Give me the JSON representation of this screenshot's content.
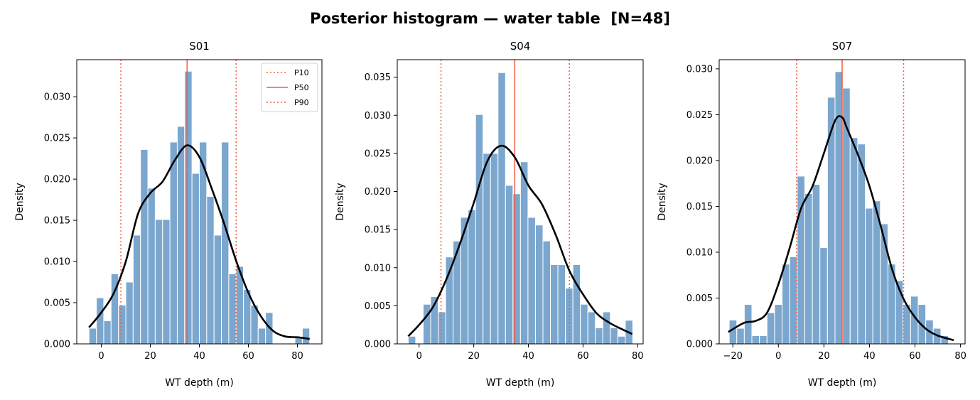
{
  "figure_title": "Posterior histogram — water table  [N=48]",
  "colors": {
    "bar": "#7ba7cf",
    "bar_edge": "#ffffff",
    "kde": "#000000",
    "percentile": "#f25c43"
  },
  "chart_data": [
    {
      "type": "bar",
      "title": "S01",
      "xlabel": "WT depth (m)",
      "ylabel": "Density",
      "xlim": [
        -10,
        90
      ],
      "ylim": [
        0,
        0.0345
      ],
      "xticks": [
        0,
        20,
        40,
        60,
        80
      ],
      "yticks": [
        0.0,
        0.005,
        0.01,
        0.015,
        0.02,
        0.025,
        0.03
      ],
      "ytick_labels": [
        "0.000",
        "0.005",
        "0.010",
        "0.015",
        "0.020",
        "0.025",
        "0.030"
      ],
      "bin_start": -5,
      "bin_width": 3,
      "values": [
        0.0019,
        0.0056,
        0.0028,
        0.0085,
        0.0047,
        0.0075,
        0.0132,
        0.0236,
        0.0189,
        0.0151,
        0.0151,
        0.0245,
        0.0264,
        0.0331,
        0.0207,
        0.0245,
        0.0179,
        0.0132,
        0.0245,
        0.0085,
        0.0094,
        0.0066,
        0.0047,
        0.0019,
        0.0038,
        0,
        0,
        0,
        0.0009,
        0.0019
      ],
      "kde": {
        "x": [
          -5,
          0,
          5,
          10,
          15,
          20,
          25,
          30,
          35,
          40,
          45,
          50,
          55,
          60,
          65,
          70,
          75,
          80,
          85
        ],
        "y": [
          0.002,
          0.0038,
          0.0061,
          0.01,
          0.0158,
          0.0183,
          0.0197,
          0.0223,
          0.0241,
          0.0227,
          0.0189,
          0.0147,
          0.0101,
          0.0062,
          0.0034,
          0.0016,
          0.0009,
          0.0008,
          0.0006
        ]
      },
      "percentiles": {
        "P10": 8,
        "P50": 35,
        "P90": 55
      },
      "legend": {
        "position": "top-right",
        "entries": [
          "P10",
          "P50",
          "P90"
        ]
      }
    },
    {
      "type": "bar",
      "title": "S04",
      "xlabel": "WT depth (m)",
      "ylabel": "Density",
      "xlim": [
        -8,
        82
      ],
      "ylim": [
        0,
        0.0373
      ],
      "xticks": [
        0,
        20,
        40,
        60,
        80
      ],
      "yticks": [
        0.0,
        0.005,
        0.01,
        0.015,
        0.02,
        0.025,
        0.03,
        0.035
      ],
      "ytick_labels": [
        "0.000",
        "0.005",
        "0.010",
        "0.015",
        "0.020",
        "0.025",
        "0.030",
        "0.035"
      ],
      "bin_start": -4,
      "bin_width": 2.74,
      "values": [
        0.001,
        0,
        0.0052,
        0.0062,
        0.0042,
        0.0114,
        0.0135,
        0.0166,
        0.0176,
        0.0301,
        0.025,
        0.025,
        0.0356,
        0.0208,
        0.0197,
        0.0239,
        0.0166,
        0.0156,
        0.0135,
        0.0104,
        0.0104,
        0.0073,
        0.0104,
        0.0052,
        0.0042,
        0.0021,
        0.0042,
        0.0021,
        0.001,
        0.0031
      ],
      "kde": {
        "x": [
          -4,
          0,
          5,
          10,
          15,
          20,
          25,
          30,
          35,
          40,
          45,
          50,
          55,
          60,
          65,
          70,
          75,
          78
        ],
        "y": [
          0.001,
          0.0025,
          0.0048,
          0.0085,
          0.0132,
          0.0185,
          0.024,
          0.026,
          0.0245,
          0.0208,
          0.0183,
          0.0143,
          0.0096,
          0.0065,
          0.004,
          0.0027,
          0.0018,
          0.0013
        ]
      },
      "percentiles": {
        "P10": 8,
        "P50": 35,
        "P90": 55
      }
    },
    {
      "type": "bar",
      "title": "S07",
      "xlabel": "WT depth (m)",
      "ylabel": "Density",
      "xlim": [
        -26,
        82
      ],
      "ylim": [
        0,
        0.031
      ],
      "xticks": [
        -20,
        0,
        20,
        40,
        60,
        80
      ],
      "yticks": [
        0.0,
        0.005,
        0.01,
        0.015,
        0.02,
        0.025,
        0.03
      ],
      "ytick_labels": [
        "0.000",
        "0.005",
        "0.010",
        "0.015",
        "0.020",
        "0.025",
        "0.030"
      ],
      "bin_start": -21.6,
      "bin_width": 3.32,
      "values": [
        0.0026,
        0.0017,
        0.0043,
        0.0009,
        0.0009,
        0.0034,
        0.0043,
        0.0087,
        0.0095,
        0.0183,
        0.0164,
        0.0174,
        0.0105,
        0.0269,
        0.0297,
        0.0279,
        0.0225,
        0.0218,
        0.0148,
        0.0156,
        0.0131,
        0.0087,
        0.0069,
        0.0043,
        0.0052,
        0.0043,
        0.0026,
        0.0017,
        0.0009
      ],
      "kde": {
        "x": [
          -22,
          -15,
          -10,
          -5,
          0,
          5,
          10,
          15,
          20,
          25,
          28,
          30,
          35,
          40,
          45,
          50,
          55,
          60,
          65,
          70,
          77
        ],
        "y": [
          0.0013,
          0.0023,
          0.0025,
          0.0034,
          0.0065,
          0.0105,
          0.0148,
          0.0172,
          0.0208,
          0.0244,
          0.0247,
          0.0236,
          0.0206,
          0.0172,
          0.0128,
          0.0081,
          0.0049,
          0.0029,
          0.0016,
          0.0009,
          0.0004
        ]
      },
      "percentiles": {
        "P10": 8,
        "P50": 28,
        "P90": 55
      }
    }
  ]
}
